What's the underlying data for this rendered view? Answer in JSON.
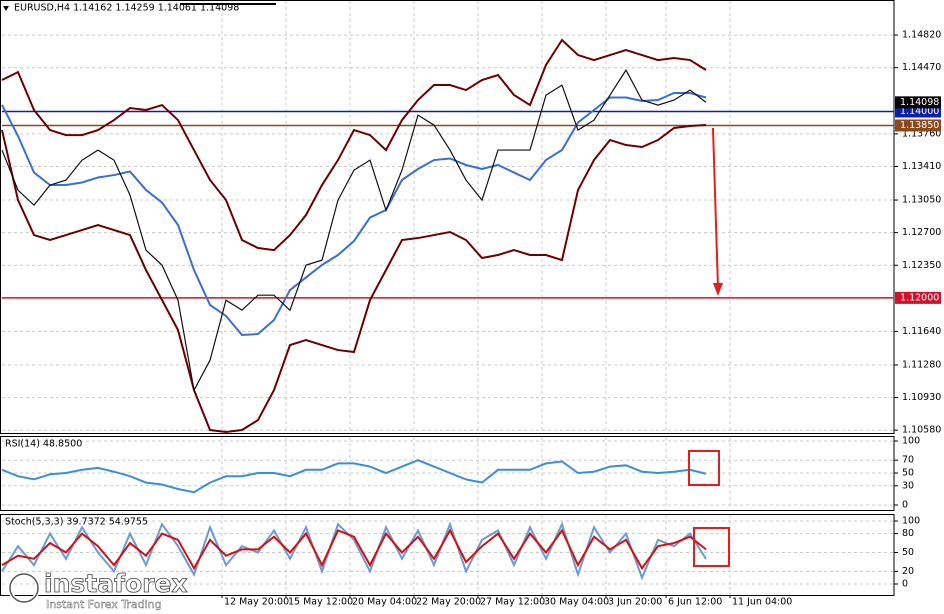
{
  "chart_data": [
    {
      "type": "line",
      "title": "EURUSD,H4  1.14162 1.14259 1.14061 1.14098",
      "x": [
        0,
        4,
        8,
        12,
        16,
        20,
        24,
        28,
        32,
        36,
        40,
        44,
        48,
        52,
        56,
        60,
        64,
        68,
        72,
        76,
        80,
        84,
        88,
        92,
        96,
        100,
        104,
        108,
        112,
        116,
        120,
        124,
        128,
        132,
        136,
        140,
        144,
        148,
        152,
        156,
        160,
        164,
        168,
        172,
        176
      ],
      "series": [
        {
          "color": "#6b0000",
          "values": [
            1.14338,
            1.14423,
            1.14016,
            1.13801,
            1.13747,
            1.13747,
            1.13801,
            1.13908,
            1.14037,
            1.14016,
            1.14069,
            1.13908,
            1.13586,
            1.13265,
            1.1305,
            1.12621,
            1.12535,
            1.12513,
            1.12674,
            1.12889,
            1.13211,
            1.13479,
            1.13801,
            1.13747,
            1.13586,
            1.13908,
            1.14123,
            1.14284,
            1.14284,
            1.1423,
            1.14338,
            1.14391,
            1.14177,
            1.14069,
            1.14499,
            1.14767,
            1.14606,
            1.14552,
            1.14606,
            1.14659,
            1.14606,
            1.14552,
            1.14574,
            1.14552,
            1.14445
          ]
        },
        {
          "color": "#6b0000",
          "values": [
            1.13801,
            1.1305,
            1.12674,
            1.12621,
            1.12674,
            1.12728,
            1.12782,
            1.12728,
            1.12674,
            1.12299,
            1.11977,
            1.11655,
            1.11011,
            1.10582,
            1.10561,
            1.10582,
            1.10689,
            1.11011,
            1.11494,
            1.11548,
            1.11494,
            1.1144,
            1.11419,
            1.11977,
            1.12299,
            1.12621,
            1.12642,
            1.12674,
            1.12707,
            1.12621,
            1.12428,
            1.1246,
            1.12513,
            1.1246,
            1.1246,
            1.12406,
            1.13157,
            1.13479,
            1.13694,
            1.1364,
            1.13619,
            1.13694,
            1.13823,
            1.13844,
            1.13855
          ]
        },
        {
          "color": "#3a6fd0",
          "values": [
            1.1407,
            1.13737,
            1.13345,
            1.13211,
            1.13211,
            1.13238,
            1.13292,
            1.13318,
            1.13356,
            1.13158,
            1.13023,
            1.12782,
            1.12299,
            1.11924,
            1.11806,
            1.11602,
            1.11612,
            1.11762,
            1.12084,
            1.12219,
            1.12353,
            1.1246,
            1.1261,
            1.12862,
            1.12943,
            1.13265,
            1.13383,
            1.13479,
            1.13496,
            1.13426,
            1.13383,
            1.13426,
            1.13345,
            1.13265,
            1.1348,
            1.13587,
            1.13882,
            1.14016,
            1.1415,
            1.1415,
            1.14113,
            1.14123,
            1.14199,
            1.14198,
            1.1415
          ]
        },
        {
          "color": "#111111",
          "values": [
            1.13586,
            1.13156,
            1.12995,
            1.1321,
            1.13264,
            1.13478,
            1.13586,
            1.13478,
            1.13103,
            1.12512,
            1.12351,
            1.11975,
            1.11009,
            1.11331,
            1.11975,
            1.11868,
            1.12029,
            1.12029,
            1.11868,
            1.12351,
            1.12405,
            1.13049,
            1.13371,
            1.13478,
            1.12941,
            1.13371,
            1.13961,
            1.13854,
            1.13586,
            1.13264,
            1.13049,
            1.13586,
            1.13586,
            1.13586,
            1.14176,
            1.14283,
            1.138,
            1.13908,
            1.14176,
            1.14444,
            1.14122,
            1.14069,
            1.14122,
            1.1423,
            1.14098
          ]
        }
      ],
      "xlim": [
        0,
        223
      ],
      "ylim": [
        1.1055,
        1.15175
      ],
      "yticks": [
        {
          "value": 1.1482,
          "label": "1.14820"
        },
        {
          "value": 1.1447,
          "label": "1.14470"
        },
        {
          "value": 1.1376,
          "label": "1.13760"
        },
        {
          "value": 1.1341,
          "label": "1.13410"
        },
        {
          "value": 1.1305,
          "label": "1.13050"
        },
        {
          "value": 1.127,
          "label": "1.12700"
        },
        {
          "value": 1.1235,
          "label": "1.12350"
        },
        {
          "value": 1.1164,
          "label": "1.11640"
        },
        {
          "value": 1.1128,
          "label": "1.11280"
        },
        {
          "value": 1.1093,
          "label": "1.10930"
        },
        {
          "value": 1.1058,
          "label": "1.10580"
        }
      ],
      "xticks": [
        {
          "value": 55,
          "label": "12 May 20:00"
        },
        {
          "value": 71,
          "label": "15 May 12:00"
        },
        {
          "value": 87,
          "label": "20 May 04:00"
        },
        {
          "value": 103,
          "label": "22 May 20:00"
        },
        {
          "value": 119,
          "label": "27 May 12:00"
        },
        {
          "value": 135,
          "label": "30 May 04:00"
        },
        {
          "value": 151,
          "label": "3 Jun 20:00"
        },
        {
          "value": 166,
          "label": "6 Jun 12:00"
        },
        {
          "value": 182,
          "label": "11 Jun 04:00"
        }
      ],
      "grid": true,
      "price_lines": [
        {
          "value": 1.14,
          "label": "1.14000",
          "color": "#0a1fb0"
        },
        {
          "value": 1.1385,
          "label": "1.13850",
          "color": "#8b4a1c"
        },
        {
          "value": 1.12,
          "label": "1.12000",
          "color": "#d4102a"
        }
      ],
      "last_price": {
        "value": 1.14098,
        "label": "1.14098"
      }
    },
    {
      "type": "line",
      "title": "RSI(14) 48.8500",
      "x": [
        0,
        4,
        8,
        12,
        16,
        20,
        24,
        28,
        32,
        36,
        40,
        44,
        48,
        52,
        56,
        60,
        64,
        68,
        72,
        76,
        80,
        84,
        88,
        92,
        96,
        100,
        104,
        108,
        112,
        116,
        120,
        124,
        128,
        132,
        136,
        140,
        144,
        148,
        152,
        156,
        160,
        164,
        168,
        172,
        176
      ],
      "series": [
        {
          "color": "#3a8fd8",
          "values": [
            55,
            45,
            40,
            48,
            50,
            55,
            58,
            52,
            45,
            35,
            32,
            25,
            20,
            35,
            45,
            45,
            50,
            50,
            45,
            55,
            55,
            65,
            65,
            60,
            50,
            60,
            70,
            60,
            50,
            40,
            35,
            55,
            55,
            55,
            65,
            68,
            50,
            52,
            60,
            62,
            52,
            50,
            52,
            55,
            48.85
          ]
        }
      ],
      "xlim": [
        0,
        223
      ],
      "ylim": [
        0,
        100
      ],
      "yticks": [
        100,
        70,
        50,
        30,
        0
      ],
      "grid": true
    },
    {
      "type": "line",
      "title": "Stoch(5,3,3) 39.7372 54.9755",
      "x": [
        0,
        4,
        8,
        12,
        16,
        20,
        24,
        28,
        32,
        36,
        40,
        44,
        48,
        52,
        56,
        60,
        64,
        68,
        72,
        76,
        80,
        84,
        88,
        92,
        96,
        100,
        104,
        108,
        112,
        116,
        120,
        124,
        128,
        132,
        136,
        140,
        144,
        148,
        152,
        156,
        160,
        164,
        168,
        172,
        176
      ],
      "series": [
        {
          "color": "#6a9ad8",
          "values": [
            20,
            60,
            30,
            80,
            40,
            90,
            50,
            20,
            80,
            30,
            95,
            60,
            15,
            90,
            30,
            60,
            50,
            85,
            40,
            90,
            20,
            95,
            70,
            20,
            90,
            40,
            85,
            30,
            95,
            20,
            70,
            85,
            30,
            90,
            40,
            95,
            15,
            90,
            50,
            80,
            10,
            70,
            60,
            80,
            39.7372
          ]
        },
        {
          "color": "#d41010",
          "values": [
            30,
            45,
            40,
            65,
            50,
            80,
            60,
            30,
            65,
            45,
            80,
            70,
            25,
            70,
            45,
            55,
            55,
            75,
            50,
            80,
            30,
            85,
            75,
            30,
            80,
            50,
            75,
            40,
            85,
            35,
            60,
            80,
            40,
            80,
            50,
            85,
            30,
            75,
            55,
            70,
            25,
            60,
            65,
            75,
            54.9755
          ]
        }
      ],
      "xlim": [
        0,
        223
      ],
      "ylim": [
        0,
        100
      ],
      "yticks": [
        100,
        80,
        50,
        20,
        0
      ],
      "grid": true
    }
  ],
  "logo": {
    "name": "instaforex",
    "tagline": "Instant Forex Trading"
  }
}
